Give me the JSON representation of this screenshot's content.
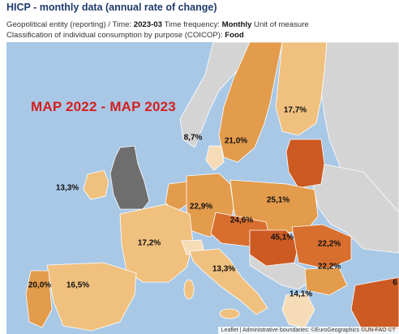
{
  "header": {
    "title": "HICP - monthly data (annual rate of change)",
    "meta_line_1": {
      "prefix": "Geopolitical entity (reporting)  / Time: ",
      "time": "2023-03",
      "mid": "  Time frequency: ",
      "frequency": "Monthly",
      "suffix": "  Unit of measure"
    },
    "meta_line_2": {
      "prefix": "Classification of individual consumption by purpose (COICOP): ",
      "value": "Food"
    }
  },
  "map": {
    "heading": "MAP 2022 - MAP 2023",
    "attribution": "Leaflet | Administrative boundaries: ©EuroGeographics ©UN-FAO ©T",
    "colors": {
      "sea": "#a8c8e6",
      "non_eu": "#d4d4d4",
      "uk": "#6e6e6e",
      "very_light": "#f6dcb6",
      "light": "#f0c07e",
      "medium": "#e39b4c",
      "dark": "#d86f2e",
      "darkest": "#cc5a22",
      "borders": "#ffffff"
    },
    "regions": [
      {
        "name": "Sweden",
        "value": "21,0%"
      },
      {
        "name": "Finland",
        "value": "17,7%"
      },
      {
        "name": "Denmark",
        "value": "8,7%"
      },
      {
        "name": "Ireland",
        "value": "13,3%"
      },
      {
        "name": "Germany",
        "value": "22,9%"
      },
      {
        "name": "Poland",
        "value": "25,1%"
      },
      {
        "name": "Czechia",
        "value": "24,6%"
      },
      {
        "name": "France",
        "value": "17,2%"
      },
      {
        "name": "Hungary",
        "value": "45,1%"
      },
      {
        "name": "Romania",
        "value": "22,2%"
      },
      {
        "name": "Bulgaria",
        "value": "22,2%"
      },
      {
        "name": "Italy",
        "value": "13,3%"
      },
      {
        "name": "Portugal",
        "value": "20,0%"
      },
      {
        "name": "Spain",
        "value": "16,5%"
      },
      {
        "name": "Greece",
        "value": "14,1%"
      },
      {
        "name": "Turkey",
        "value": "6"
      }
    ]
  }
}
